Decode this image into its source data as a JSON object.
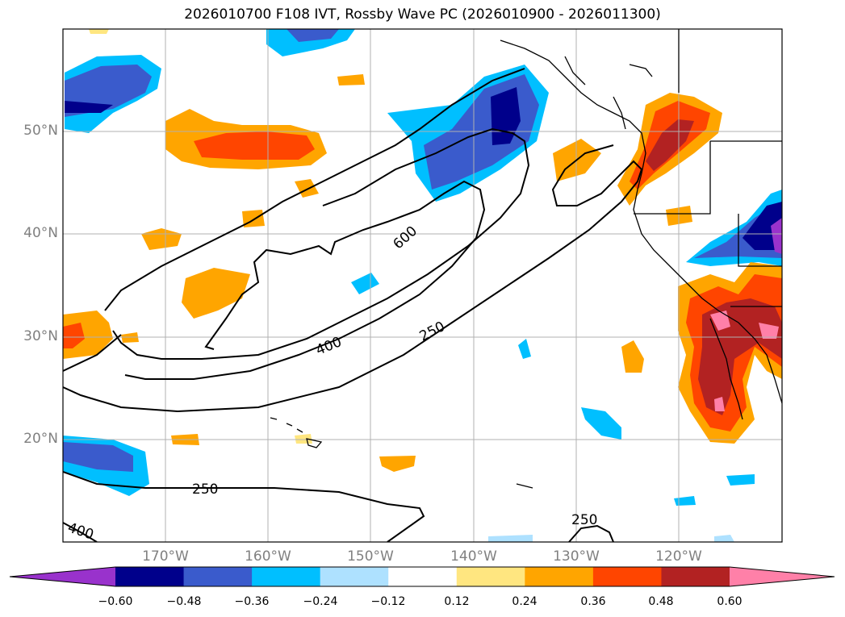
{
  "title": "2026010700 F108 IVT, Rossby Wave PC (2026010900 - 2026011300)",
  "map": {
    "lon_labels": [
      "170°W",
      "160°W",
      "150°W",
      "140°W",
      "130°W",
      "120°W"
    ],
    "lat_labels": [
      "50°N",
      "40°N",
      "30°N",
      "20°N"
    ],
    "contour_labels": [
      "600",
      "400",
      "250",
      "250",
      "250",
      "400"
    ],
    "gridlines": true
  },
  "colorbar": {
    "tick_labels": [
      "−0.60",
      "−0.48",
      "−0.36",
      "−0.24",
      "−0.12",
      "0.12",
      "0.24",
      "0.36",
      "0.48",
      "0.60"
    ],
    "colors": [
      "#9932cc",
      "#00008b",
      "#3a5bcc",
      "#00bfff",
      "#aee1ff",
      "#ffffff",
      "#ffe680",
      "#ffa500",
      "#ff4500",
      "#b22222",
      "#ff80a8"
    ],
    "extend": "both"
  }
}
